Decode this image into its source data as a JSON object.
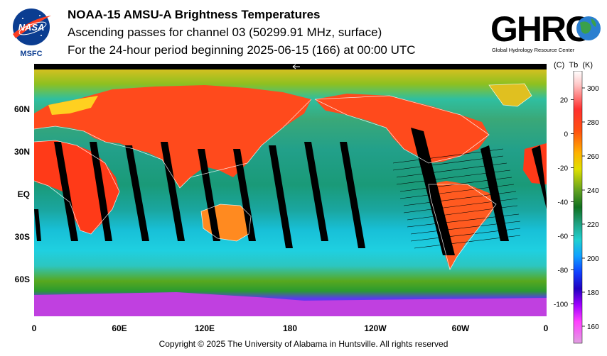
{
  "header": {
    "title": "NOAA-15 AMSU-A Brightness Temperatures",
    "subtitle": "Ascending passes for channel 03 (50299.91 MHz, surface)",
    "period": "For the 24-hour period beginning 2025-06-15 (166) at 00:00 UTC"
  },
  "logos": {
    "nasa_text": "NASA",
    "nasa_sub": "MSFC",
    "ghrc_text": "GHRC",
    "ghrc_sub": "Global Hydrology Resource Center"
  },
  "map": {
    "projection": "equirectangular",
    "lat_labels": [
      "60N",
      "30N",
      "EQ",
      "30S",
      "60S"
    ],
    "lon_labels": [
      "0",
      "60E",
      "120E",
      "180",
      "120W",
      "60W",
      "0"
    ],
    "colors": {
      "cold_ocean": "#16c8c8",
      "equatorial_ocean": "#1a9a78",
      "hot_land": "#ff3a1a",
      "polar": "#a020f0",
      "swath_gap": "#000000"
    }
  },
  "colorbar": {
    "units_celsius": "(C)",
    "units_tb": "Tb",
    "units_kelvin": "(K)",
    "kelvin_ticks": [
      "300",
      "280",
      "260",
      "240",
      "220",
      "200",
      "180",
      "160"
    ],
    "celsius_ticks": [
      "20",
      "0",
      "-20",
      "-40",
      "-60",
      "-80",
      "-100"
    ],
    "range_kelvin": [
      150,
      310
    ]
  },
  "footer": {
    "copyright": "Copyright © 2025 The University of Alabama in Huntsville.  All rights reserved"
  }
}
